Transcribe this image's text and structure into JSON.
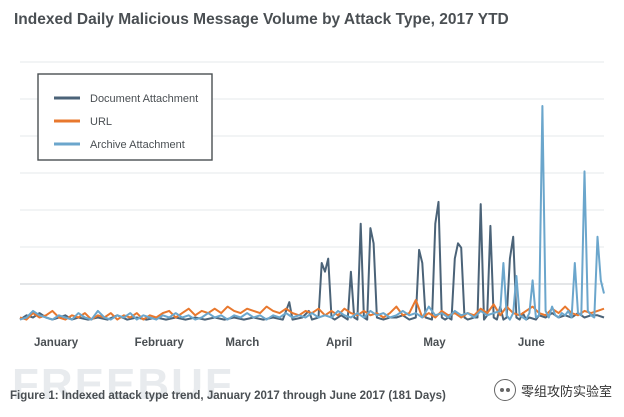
{
  "chart_data": {
    "type": "line",
    "title": "Indexed Daily Malicious Message Volume by Attack Type, 2017 YTD",
    "xlabel": "",
    "ylabel": "",
    "x_range": [
      "2017-01-01",
      "2017-06-30"
    ],
    "tick_labels": [
      "January",
      "February",
      "March",
      "April",
      "May",
      "June"
    ],
    "ylim": [
      0,
      100
    ],
    "grid": true,
    "legend_position": "top-left",
    "series": [
      {
        "name": "Document Attachment",
        "color": "#4b6378",
        "points": [
          [
            1,
            2
          ],
          [
            3,
            4
          ],
          [
            5,
            3
          ],
          [
            7,
            5
          ],
          [
            9,
            3
          ],
          [
            11,
            2
          ],
          [
            13,
            3
          ],
          [
            15,
            4
          ],
          [
            17,
            2
          ],
          [
            19,
            3
          ],
          [
            22,
            2
          ],
          [
            25,
            3
          ],
          [
            28,
            2
          ],
          [
            31,
            4
          ],
          [
            34,
            2
          ],
          [
            37,
            3
          ],
          [
            40,
            2
          ],
          [
            43,
            3
          ],
          [
            46,
            2
          ],
          [
            49,
            3
          ],
          [
            52,
            2
          ],
          [
            55,
            3
          ],
          [
            58,
            2
          ],
          [
            61,
            3
          ],
          [
            64,
            2
          ],
          [
            67,
            3
          ],
          [
            70,
            2
          ],
          [
            73,
            3
          ],
          [
            76,
            2
          ],
          [
            79,
            3
          ],
          [
            82,
            2
          ],
          [
            84,
            10
          ],
          [
            85,
            2
          ],
          [
            88,
            3
          ],
          [
            90,
            6
          ],
          [
            91,
            2
          ],
          [
            93,
            3
          ],
          [
            94,
            28
          ],
          [
            95,
            24
          ],
          [
            96,
            30
          ],
          [
            97,
            3
          ],
          [
            98,
            2
          ],
          [
            100,
            4
          ],
          [
            102,
            2
          ],
          [
            103,
            24
          ],
          [
            104,
            3
          ],
          [
            105,
            2
          ],
          [
            106,
            46
          ],
          [
            107,
            3
          ],
          [
            108,
            2
          ],
          [
            109,
            44
          ],
          [
            110,
            37
          ],
          [
            111,
            3
          ],
          [
            113,
            2
          ],
          [
            115,
            3
          ],
          [
            117,
            3
          ],
          [
            119,
            4
          ],
          [
            121,
            2
          ],
          [
            123,
            3
          ],
          [
            124,
            34
          ],
          [
            125,
            28
          ],
          [
            126,
            3
          ],
          [
            128,
            2
          ],
          [
            129,
            46
          ],
          [
            130,
            56
          ],
          [
            131,
            3
          ],
          [
            132,
            2
          ],
          [
            133,
            3
          ],
          [
            134,
            2
          ],
          [
            135,
            30
          ],
          [
            136,
            37
          ],
          [
            137,
            35
          ],
          [
            138,
            3
          ],
          [
            139,
            2
          ],
          [
            141,
            3
          ],
          [
            142,
            3
          ],
          [
            143,
            55
          ],
          [
            144,
            2
          ],
          [
            145,
            4
          ],
          [
            146,
            45
          ],
          [
            147,
            3
          ],
          [
            148,
            2
          ],
          [
            149,
            8
          ],
          [
            150,
            2
          ],
          [
            151,
            3
          ],
          [
            152,
            30
          ],
          [
            153,
            40
          ],
          [
            154,
            3
          ],
          [
            155,
            2
          ],
          [
            156,
            5
          ],
          [
            157,
            2
          ],
          [
            158,
            3
          ],
          [
            160,
            2
          ],
          [
            161,
            4
          ],
          [
            163,
            3
          ],
          [
            165,
            5
          ],
          [
            167,
            3
          ],
          [
            169,
            4
          ],
          [
            171,
            3
          ],
          [
            173,
            5
          ],
          [
            175,
            3
          ],
          [
            177,
            4
          ],
          [
            179,
            4
          ],
          [
            181,
            3
          ]
        ]
      },
      {
        "name": "URL",
        "color": "#e8782e",
        "points": [
          [
            1,
            3
          ],
          [
            3,
            2
          ],
          [
            5,
            5
          ],
          [
            7,
            3
          ],
          [
            9,
            4
          ],
          [
            11,
            6
          ],
          [
            13,
            3
          ],
          [
            15,
            2
          ],
          [
            17,
            4
          ],
          [
            19,
            3
          ],
          [
            21,
            5
          ],
          [
            23,
            2
          ],
          [
            25,
            4
          ],
          [
            27,
            3
          ],
          [
            29,
            5
          ],
          [
            31,
            2
          ],
          [
            33,
            4
          ],
          [
            35,
            3
          ],
          [
            37,
            5
          ],
          [
            39,
            2
          ],
          [
            41,
            4
          ],
          [
            43,
            3
          ],
          [
            45,
            5
          ],
          [
            47,
            6
          ],
          [
            49,
            3
          ],
          [
            51,
            5
          ],
          [
            53,
            7
          ],
          [
            55,
            4
          ],
          [
            57,
            6
          ],
          [
            59,
            5
          ],
          [
            61,
            7
          ],
          [
            63,
            5
          ],
          [
            65,
            8
          ],
          [
            67,
            6
          ],
          [
            69,
            5
          ],
          [
            71,
            7
          ],
          [
            73,
            6
          ],
          [
            75,
            5
          ],
          [
            77,
            8
          ],
          [
            79,
            6
          ],
          [
            81,
            5
          ],
          [
            83,
            7
          ],
          [
            85,
            5
          ],
          [
            87,
            4
          ],
          [
            89,
            6
          ],
          [
            91,
            5
          ],
          [
            93,
            7
          ],
          [
            95,
            4
          ],
          [
            97,
            6
          ],
          [
            99,
            4
          ],
          [
            101,
            7
          ],
          [
            103,
            5
          ],
          [
            105,
            4
          ],
          [
            107,
            6
          ],
          [
            109,
            4
          ],
          [
            111,
            5
          ],
          [
            113,
            3
          ],
          [
            115,
            5
          ],
          [
            117,
            8
          ],
          [
            119,
            4
          ],
          [
            121,
            5
          ],
          [
            123,
            11
          ],
          [
            125,
            3
          ],
          [
            127,
            5
          ],
          [
            129,
            3
          ],
          [
            131,
            6
          ],
          [
            133,
            4
          ],
          [
            135,
            5
          ],
          [
            137,
            3
          ],
          [
            139,
            5
          ],
          [
            141,
            4
          ],
          [
            143,
            7
          ],
          [
            145,
            5
          ],
          [
            147,
            9
          ],
          [
            149,
            4
          ],
          [
            151,
            8
          ],
          [
            153,
            5
          ],
          [
            155,
            4
          ],
          [
            157,
            6
          ],
          [
            159,
            8
          ],
          [
            161,
            5
          ],
          [
            163,
            4
          ],
          [
            165,
            7
          ],
          [
            167,
            5
          ],
          [
            169,
            8
          ],
          [
            171,
            5
          ],
          [
            173,
            4
          ],
          [
            175,
            6
          ],
          [
            177,
            5
          ],
          [
            179,
            6
          ],
          [
            181,
            7
          ]
        ]
      },
      {
        "name": "Archive Attachment",
        "color": "#6ba6cc",
        "points": [
          [
            1,
            2
          ],
          [
            3,
            3
          ],
          [
            5,
            6
          ],
          [
            7,
            4
          ],
          [
            9,
            3
          ],
          [
            11,
            2
          ],
          [
            13,
            4
          ],
          [
            15,
            3
          ],
          [
            17,
            2
          ],
          [
            19,
            5
          ],
          [
            21,
            3
          ],
          [
            23,
            2
          ],
          [
            25,
            6
          ],
          [
            27,
            3
          ],
          [
            29,
            2
          ],
          [
            31,
            4
          ],
          [
            33,
            3
          ],
          [
            35,
            5
          ],
          [
            37,
            2
          ],
          [
            39,
            4
          ],
          [
            41,
            3
          ],
          [
            43,
            2
          ],
          [
            45,
            4
          ],
          [
            47,
            3
          ],
          [
            49,
            5
          ],
          [
            51,
            3
          ],
          [
            53,
            4
          ],
          [
            55,
            2
          ],
          [
            57,
            3
          ],
          [
            59,
            5
          ],
          [
            61,
            3
          ],
          [
            63,
            4
          ],
          [
            65,
            2
          ],
          [
            67,
            4
          ],
          [
            69,
            3
          ],
          [
            71,
            5
          ],
          [
            73,
            3
          ],
          [
            75,
            4
          ],
          [
            77,
            2
          ],
          [
            79,
            4
          ],
          [
            81,
            3
          ],
          [
            83,
            5
          ],
          [
            85,
            3
          ],
          [
            87,
            4
          ],
          [
            89,
            3
          ],
          [
            91,
            5
          ],
          [
            93,
            3
          ],
          [
            95,
            4
          ],
          [
            97,
            3
          ],
          [
            99,
            6
          ],
          [
            101,
            4
          ],
          [
            103,
            3
          ],
          [
            105,
            5
          ],
          [
            107,
            3
          ],
          [
            109,
            6
          ],
          [
            111,
            4
          ],
          [
            113,
            5
          ],
          [
            115,
            3
          ],
          [
            117,
            4
          ],
          [
            119,
            6
          ],
          [
            121,
            4
          ],
          [
            123,
            5
          ],
          [
            125,
            3
          ],
          [
            127,
            8
          ],
          [
            129,
            4
          ],
          [
            131,
            5
          ],
          [
            133,
            3
          ],
          [
            135,
            6
          ],
          [
            137,
            4
          ],
          [
            139,
            5
          ],
          [
            141,
            3
          ],
          [
            143,
            6
          ],
          [
            145,
            4
          ],
          [
            147,
            5
          ],
          [
            149,
            6
          ],
          [
            150,
            28
          ],
          [
            151,
            4
          ],
          [
            152,
            2
          ],
          [
            153,
            5
          ],
          [
            154,
            22
          ],
          [
            155,
            4
          ],
          [
            156,
            3
          ],
          [
            157,
            2
          ],
          [
            158,
            5
          ],
          [
            159,
            20
          ],
          [
            160,
            3
          ],
          [
            161,
            4
          ],
          [
            162,
            100
          ],
          [
            163,
            6
          ],
          [
            164,
            3
          ],
          [
            165,
            8
          ],
          [
            166,
            4
          ],
          [
            167,
            3
          ],
          [
            168,
            5
          ],
          [
            169,
            4
          ],
          [
            170,
            6
          ],
          [
            171,
            3
          ],
          [
            172,
            28
          ],
          [
            173,
            5
          ],
          [
            174,
            4
          ],
          [
            175,
            70
          ],
          [
            176,
            6
          ],
          [
            177,
            4
          ],
          [
            178,
            3
          ],
          [
            179,
            40
          ],
          [
            180,
            20
          ],
          [
            181,
            14
          ]
        ]
      }
    ]
  },
  "caption": "Figure 1: Indexed attack type trend, January 2017 through June 2017 (181 Days)",
  "watermark": "FREEBUF",
  "brand": {
    "label": "零组攻防实验室",
    "icon": "wechat-icon"
  }
}
